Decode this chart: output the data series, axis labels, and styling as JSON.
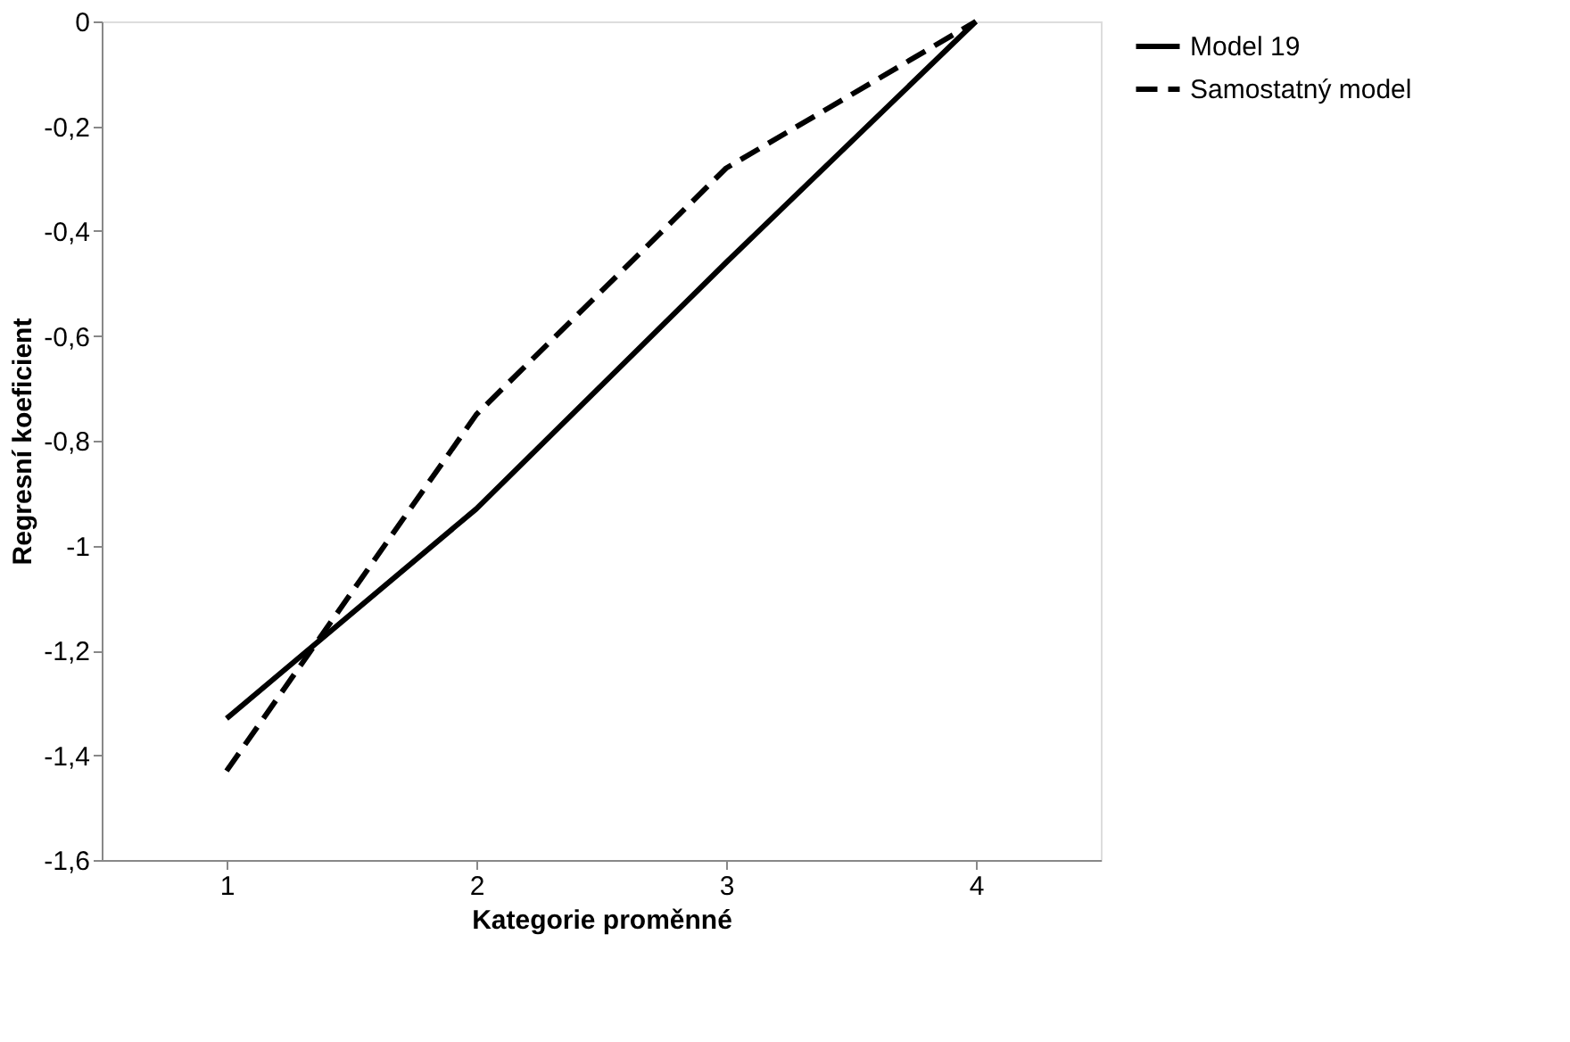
{
  "chart_data": {
    "type": "line",
    "xlabel": "Kategorie proměnné",
    "ylabel": "Regresní koeficient",
    "categories": [
      "1",
      "2",
      "3",
      "4"
    ],
    "series": [
      {
        "name": "Model 19",
        "color": "#000000",
        "line_style": "solid",
        "values": [
          -1.33,
          -0.93,
          -0.46,
          0
        ]
      },
      {
        "name": "Samostatný model",
        "color": "#000000",
        "line_style": "dashed",
        "values": [
          -1.43,
          -0.75,
          -0.28,
          0
        ]
      }
    ],
    "ylim": [
      -1.6,
      0
    ],
    "yticks": [
      {
        "value": -1.6,
        "label": "-1,6"
      },
      {
        "value": -1.4,
        "label": "-1,4"
      },
      {
        "value": -1.2,
        "label": "-1,2"
      },
      {
        "value": -1,
        "label": "-1"
      },
      {
        "value": -0.8,
        "label": "-0,8"
      },
      {
        "value": -0.6,
        "label": "-0,6"
      },
      {
        "value": -0.4,
        "label": "-0,4"
      },
      {
        "value": -0.2,
        "label": "-0,2"
      },
      {
        "value": 0,
        "label": "0"
      }
    ],
    "grid": false,
    "legend": "right",
    "marker": "none"
  }
}
